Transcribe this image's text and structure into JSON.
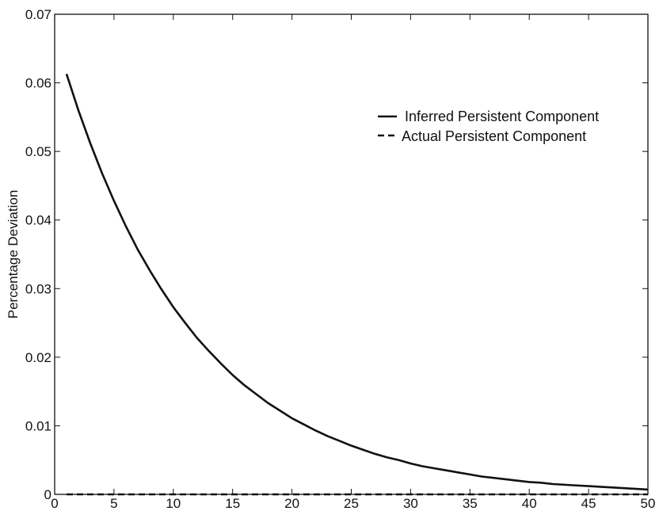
{
  "chart_data": {
    "type": "line",
    "title": "",
    "xlabel": "",
    "ylabel": "Percentage Deviation",
    "xlim": [
      0,
      50
    ],
    "ylim": [
      0,
      0.07
    ],
    "xticks": [
      0,
      5,
      10,
      15,
      20,
      25,
      30,
      35,
      40,
      45,
      50
    ],
    "yticks": [
      0,
      0.01,
      0.02,
      0.03,
      0.04,
      0.05,
      0.06,
      0.07
    ],
    "ytick_labels": [
      "0",
      "0.01",
      "0.02",
      "0.03",
      "0.04",
      "0.05",
      "0.06",
      "0.07"
    ],
    "grid": false,
    "legend_position": "top-right",
    "x": [
      1,
      2,
      3,
      4,
      5,
      6,
      7,
      8,
      9,
      10,
      11,
      12,
      13,
      14,
      15,
      16,
      17,
      18,
      19,
      20,
      21,
      22,
      23,
      24,
      25,
      26,
      27,
      28,
      29,
      30,
      31,
      32,
      33,
      34,
      35,
      36,
      37,
      38,
      39,
      40,
      41,
      42,
      43,
      44,
      45,
      46,
      47,
      48,
      49,
      50
    ],
    "series": [
      {
        "name": "Inferred Persistent Component",
        "style": "solid",
        "values": [
          0.0613,
          0.056,
          0.0512,
          0.0468,
          0.0428,
          0.0391,
          0.0357,
          0.0327,
          0.0299,
          0.0273,
          0.025,
          0.0228,
          0.0209,
          0.0191,
          0.0174,
          0.0159,
          0.0146,
          0.0133,
          0.0122,
          0.0111,
          0.0102,
          0.0093,
          0.0085,
          0.0078,
          0.0071,
          0.0065,
          0.0059,
          0.0054,
          0.005,
          0.0045,
          0.0041,
          0.0038,
          0.0035,
          0.0032,
          0.0029,
          0.0026,
          0.0024,
          0.0022,
          0.002,
          0.0018,
          0.0017,
          0.0015,
          0.0014,
          0.0013,
          0.0012,
          0.0011,
          0.001,
          0.0009,
          0.0008,
          0.0007
        ]
      },
      {
        "name": "Actual Persistent Component",
        "style": "dashed",
        "values": [
          0,
          0,
          0,
          0,
          0,
          0,
          0,
          0,
          0,
          0,
          0,
          0,
          0,
          0,
          0,
          0,
          0,
          0,
          0,
          0,
          0,
          0,
          0,
          0,
          0,
          0,
          0,
          0,
          0,
          0,
          0,
          0,
          0,
          0,
          0,
          0,
          0,
          0,
          0,
          0,
          0,
          0,
          0,
          0,
          0,
          0,
          0,
          0,
          0,
          0
        ]
      }
    ]
  }
}
